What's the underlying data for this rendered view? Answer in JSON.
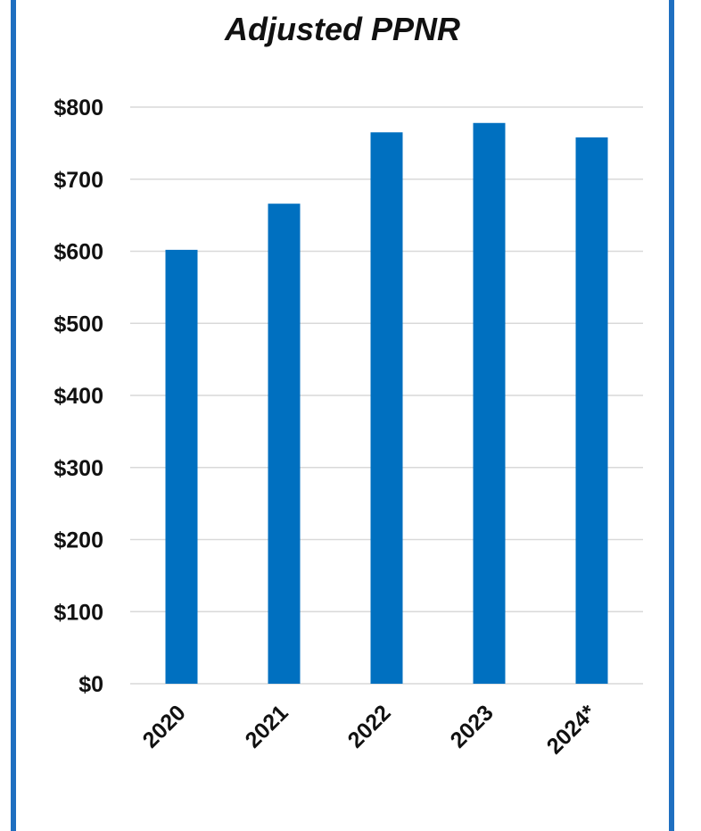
{
  "chart_data": {
    "type": "bar",
    "title": "Adjusted PPNR",
    "categories": [
      "2020",
      "2021",
      "2022",
      "2023",
      "2024*"
    ],
    "values": [
      602,
      666,
      765,
      778,
      758
    ],
    "ylim": [
      0,
      800
    ],
    "yticks": [
      0,
      100,
      200,
      300,
      400,
      500,
      600,
      700,
      800
    ],
    "ytick_labels": [
      "$0",
      "$100",
      "$200",
      "$300",
      "$400",
      "$500",
      "$600",
      "$700",
      "$800"
    ],
    "grid": true,
    "legend": "none",
    "bar_color": "#0070c0",
    "grid_color": "#d9d9d9",
    "border_color": "#1f6fc0"
  }
}
